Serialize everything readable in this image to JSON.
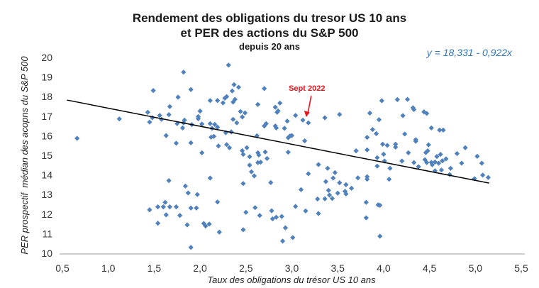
{
  "chart_data": {
    "type": "scatter",
    "title_lines": [
      "Rendement des obligations du tresor US 10 ans",
      "et PER des actions du S&P 500"
    ],
    "subtitle": "depuis 20 ans",
    "xlabel": "Taux des obligations du trésor US 10 ans",
    "ylabel": "PER prospectif  médian des acopns du S&P 500",
    "xlim": [
      0.5,
      5.5
    ],
    "ylim": [
      10,
      20
    ],
    "xticks": [
      "0,5",
      "1,0",
      "1,5",
      "2,0",
      "2,5",
      "3,0",
      "3,5",
      "4,0",
      "4,5",
      "5,0",
      "5,5"
    ],
    "yticks": [
      "10",
      "11",
      "12",
      "13",
      "14",
      "15",
      "16",
      "17",
      "18",
      "19",
      "20"
    ],
    "grid": false,
    "point_color": "#4f81bd",
    "trendline": {
      "equation": "y = 18,331 - 0,922x",
      "intercept": 18.331,
      "slope": -0.922,
      "x_range": [
        0.55,
        5.15
      ],
      "color": "#000000"
    },
    "annotation": {
      "text": "Sept 2022",
      "x": 3.18,
      "y": 16.66,
      "color": "#e8141e"
    },
    "points": [
      [
        0.66,
        15.87
      ],
      [
        1.12,
        16.86
      ],
      [
        1.49,
        18.31
      ],
      [
        1.43,
        17.2
      ],
      [
        1.45,
        16.7
      ],
      [
        1.48,
        16.92
      ],
      [
        1.56,
        17.04
      ],
      [
        1.58,
        16.84
      ],
      [
        1.63,
        16.01
      ],
      [
        1.66,
        17.08
      ],
      [
        1.67,
        17.49
      ],
      [
        1.76,
        17.97
      ],
      [
        1.75,
        16.62
      ],
      [
        1.81,
        16.4
      ],
      [
        1.82,
        19.25
      ],
      [
        1.82,
        16.66
      ],
      [
        1.83,
        16.8
      ],
      [
        1.9,
        18.36
      ],
      [
        1.91,
        16.57
      ],
      [
        1.9,
        15.64
      ],
      [
        1.74,
        15.62
      ],
      [
        1.98,
        16.98
      ],
      [
        2.0,
        17.26
      ],
      [
        1.98,
        16.87
      ],
      [
        2.02,
        16.6
      ],
      [
        2.02,
        15.13
      ],
      [
        2.11,
        17.8
      ],
      [
        2.11,
        16.62
      ],
      [
        2.13,
        16.38
      ],
      [
        2.12,
        15.93
      ],
      [
        2.15,
        15.97
      ],
      [
        2.16,
        16.58
      ],
      [
        2.19,
        16.44
      ],
      [
        2.19,
        17.8
      ],
      [
        2.2,
        15.48
      ],
      [
        2.25,
        17.68
      ],
      [
        2.27,
        17.92
      ],
      [
        2.29,
        18.0
      ],
      [
        2.28,
        16.16
      ],
      [
        2.29,
        15.55
      ],
      [
        2.32,
        15.39
      ],
      [
        2.31,
        19.61
      ],
      [
        2.34,
        16.2
      ],
      [
        2.35,
        18.29
      ],
      [
        2.37,
        18.61
      ],
      [
        2.42,
        18.48
      ],
      [
        2.36,
        17.72
      ],
      [
        2.38,
        17.86
      ],
      [
        2.36,
        16.84
      ],
      [
        2.4,
        16.66
      ],
      [
        2.44,
        17.24
      ],
      [
        2.49,
        17.17
      ],
      [
        2.46,
        16.96
      ],
      [
        2.46,
        15.24
      ],
      [
        2.47,
        15.05
      ],
      [
        2.51,
        15.39
      ],
      [
        2.54,
        14.93
      ],
      [
        2.54,
        14.5
      ],
      [
        2.56,
        14.16
      ],
      [
        2.59,
        13.95
      ],
      [
        2.63,
        15.13
      ],
      [
        2.64,
        15.02
      ],
      [
        2.63,
        14.63
      ],
      [
        2.66,
        14.65
      ],
      [
        2.71,
        15.17
      ],
      [
        2.73,
        14.84
      ],
      [
        2.62,
        16.0
      ],
      [
        2.63,
        17.6
      ],
      [
        2.7,
        18.41
      ],
      [
        2.7,
        16.5
      ],
      [
        2.72,
        16.62
      ],
      [
        2.82,
        17.46
      ],
      [
        2.84,
        17.2
      ],
      [
        2.85,
        17.27
      ],
      [
        2.87,
        17.67
      ],
      [
        2.82,
        16.5
      ],
      [
        2.83,
        16.4
      ],
      [
        2.92,
        16.38
      ],
      [
        2.95,
        16.75
      ],
      [
        2.96,
        15.9
      ],
      [
        2.96,
        15.16
      ],
      [
        2.77,
        13.61
      ],
      [
        2.98,
        15.99
      ],
      [
        1.66,
        13.71
      ],
      [
        1.84,
        13.43
      ],
      [
        1.87,
        13.08
      ],
      [
        1.97,
        13.0
      ],
      [
        2.11,
        13.84
      ],
      [
        2.47,
        13.56
      ],
      [
        2.19,
        12.62
      ],
      [
        1.45,
        12.22
      ],
      [
        1.54,
        12.37
      ],
      [
        1.6,
        12.37
      ],
      [
        1.62,
        12.6
      ],
      [
        1.67,
        12.37
      ],
      [
        1.74,
        12.37
      ],
      [
        1.63,
        11.96
      ],
      [
        1.78,
        11.93
      ],
      [
        1.9,
        12.31
      ],
      [
        1.96,
        12.31
      ],
      [
        1.54,
        11.53
      ],
      [
        1.86,
        11.45
      ],
      [
        2.04,
        11.52
      ],
      [
        2.06,
        11.39
      ],
      [
        2.1,
        11.49
      ],
      [
        2.21,
        11.08
      ],
      [
        1.9,
        10.3
      ],
      [
        2.5,
        12.09
      ],
      [
        2.6,
        12.33
      ],
      [
        2.65,
        11.93
      ],
      [
        2.78,
        12.17
      ],
      [
        2.79,
        11.76
      ],
      [
        2.83,
        11.84
      ],
      [
        2.89,
        11.88
      ],
      [
        2.93,
        11.3
      ],
      [
        2.9,
        10.62
      ],
      [
        2.47,
        11.2
      ],
      [
        3.04,
        17.04
      ],
      [
        3.12,
        16.8
      ],
      [
        3.18,
        16.66
      ],
      [
        3.36,
        16.92
      ],
      [
        3.52,
        17.09
      ],
      [
        3.0,
        16.01
      ],
      [
        3.14,
        15.74
      ],
      [
        3.29,
        14.53
      ],
      [
        3.39,
        14.34
      ],
      [
        3.47,
        14.12
      ],
      [
        3.18,
        14.06
      ],
      [
        3.37,
        13.66
      ],
      [
        3.45,
        13.84
      ],
      [
        3.52,
        13.6
      ],
      [
        3.59,
        13.5
      ],
      [
        3.65,
        13.32
      ],
      [
        3.72,
        13.85
      ],
      [
        3.1,
        13.25
      ],
      [
        3.4,
        13.21
      ],
      [
        3.41,
        12.97
      ],
      [
        3.44,
        12.8
      ],
      [
        3.5,
        13.07
      ],
      [
        3.58,
        13.16
      ],
      [
        3.59,
        13.03
      ],
      [
        3.28,
        12.77
      ],
      [
        3.36,
        12.78
      ],
      [
        3.04,
        12.39
      ],
      [
        3.15,
        12.16
      ],
      [
        3.29,
        12.03
      ],
      [
        3.01,
        10.8
      ],
      [
        3.81,
        12.6
      ],
      [
        3.81,
        11.81
      ],
      [
        3.94,
        12.47
      ],
      [
        3.96,
        12.45
      ],
      [
        3.96,
        10.87
      ],
      [
        3.82,
        13.91
      ],
      [
        3.82,
        13.78
      ],
      [
        3.7,
        15.23
      ],
      [
        3.82,
        15.28
      ],
      [
        3.82,
        15.92
      ],
      [
        3.88,
        16.32
      ],
      [
        3.92,
        16.11
      ],
      [
        3.85,
        17.16
      ],
      [
        3.95,
        16.82
      ],
      [
        3.98,
        17.79
      ],
      [
        3.93,
        14.88
      ],
      [
        3.93,
        14.45
      ],
      [
        4.0,
        15.06
      ],
      [
        4.01,
        14.71
      ],
      [
        3.99,
        15.57
      ],
      [
        4.04,
        15.51
      ],
      [
        4.07,
        14.34
      ],
      [
        4.06,
        13.78
      ],
      [
        4.13,
        15.57
      ],
      [
        4.13,
        15.42
      ],
      [
        4.15,
        17.85
      ],
      [
        4.26,
        17.86
      ],
      [
        4.21,
        17.03
      ],
      [
        4.23,
        16.09
      ],
      [
        4.32,
        17.43
      ],
      [
        4.33,
        17.34
      ],
      [
        4.35,
        15.8
      ],
      [
        4.35,
        15.72
      ],
      [
        4.2,
        14.71
      ],
      [
        4.27,
        15.13
      ],
      [
        4.33,
        14.63
      ],
      [
        4.38,
        14.42
      ],
      [
        4.44,
        17.22
      ],
      [
        4.47,
        17.14
      ],
      [
        4.52,
        16.4
      ],
      [
        4.61,
        16.29
      ],
      [
        4.65,
        16.29
      ],
      [
        4.49,
        15.54
      ],
      [
        4.46,
        15.14
      ],
      [
        4.48,
        15.23
      ],
      [
        4.45,
        14.78
      ],
      [
        4.47,
        14.63
      ],
      [
        4.52,
        14.64
      ],
      [
        4.53,
        14.52
      ],
      [
        4.56,
        14.66
      ],
      [
        4.58,
        14.94
      ],
      [
        4.62,
        15.05
      ],
      [
        4.6,
        14.6
      ],
      [
        4.64,
        14.72
      ],
      [
        4.68,
        14.82
      ],
      [
        4.56,
        14.21
      ],
      [
        4.63,
        14.25
      ],
      [
        4.73,
        14.34
      ],
      [
        4.72,
        14.02
      ],
      [
        4.8,
        15.09
      ],
      [
        4.89,
        15.39
      ],
      [
        4.85,
        14.6
      ],
      [
        5.02,
        14.95
      ],
      [
        5.07,
        14.6
      ],
      [
        4.99,
        13.81
      ],
      [
        5.08,
        13.99
      ],
      [
        5.14,
        13.87
      ]
    ]
  }
}
